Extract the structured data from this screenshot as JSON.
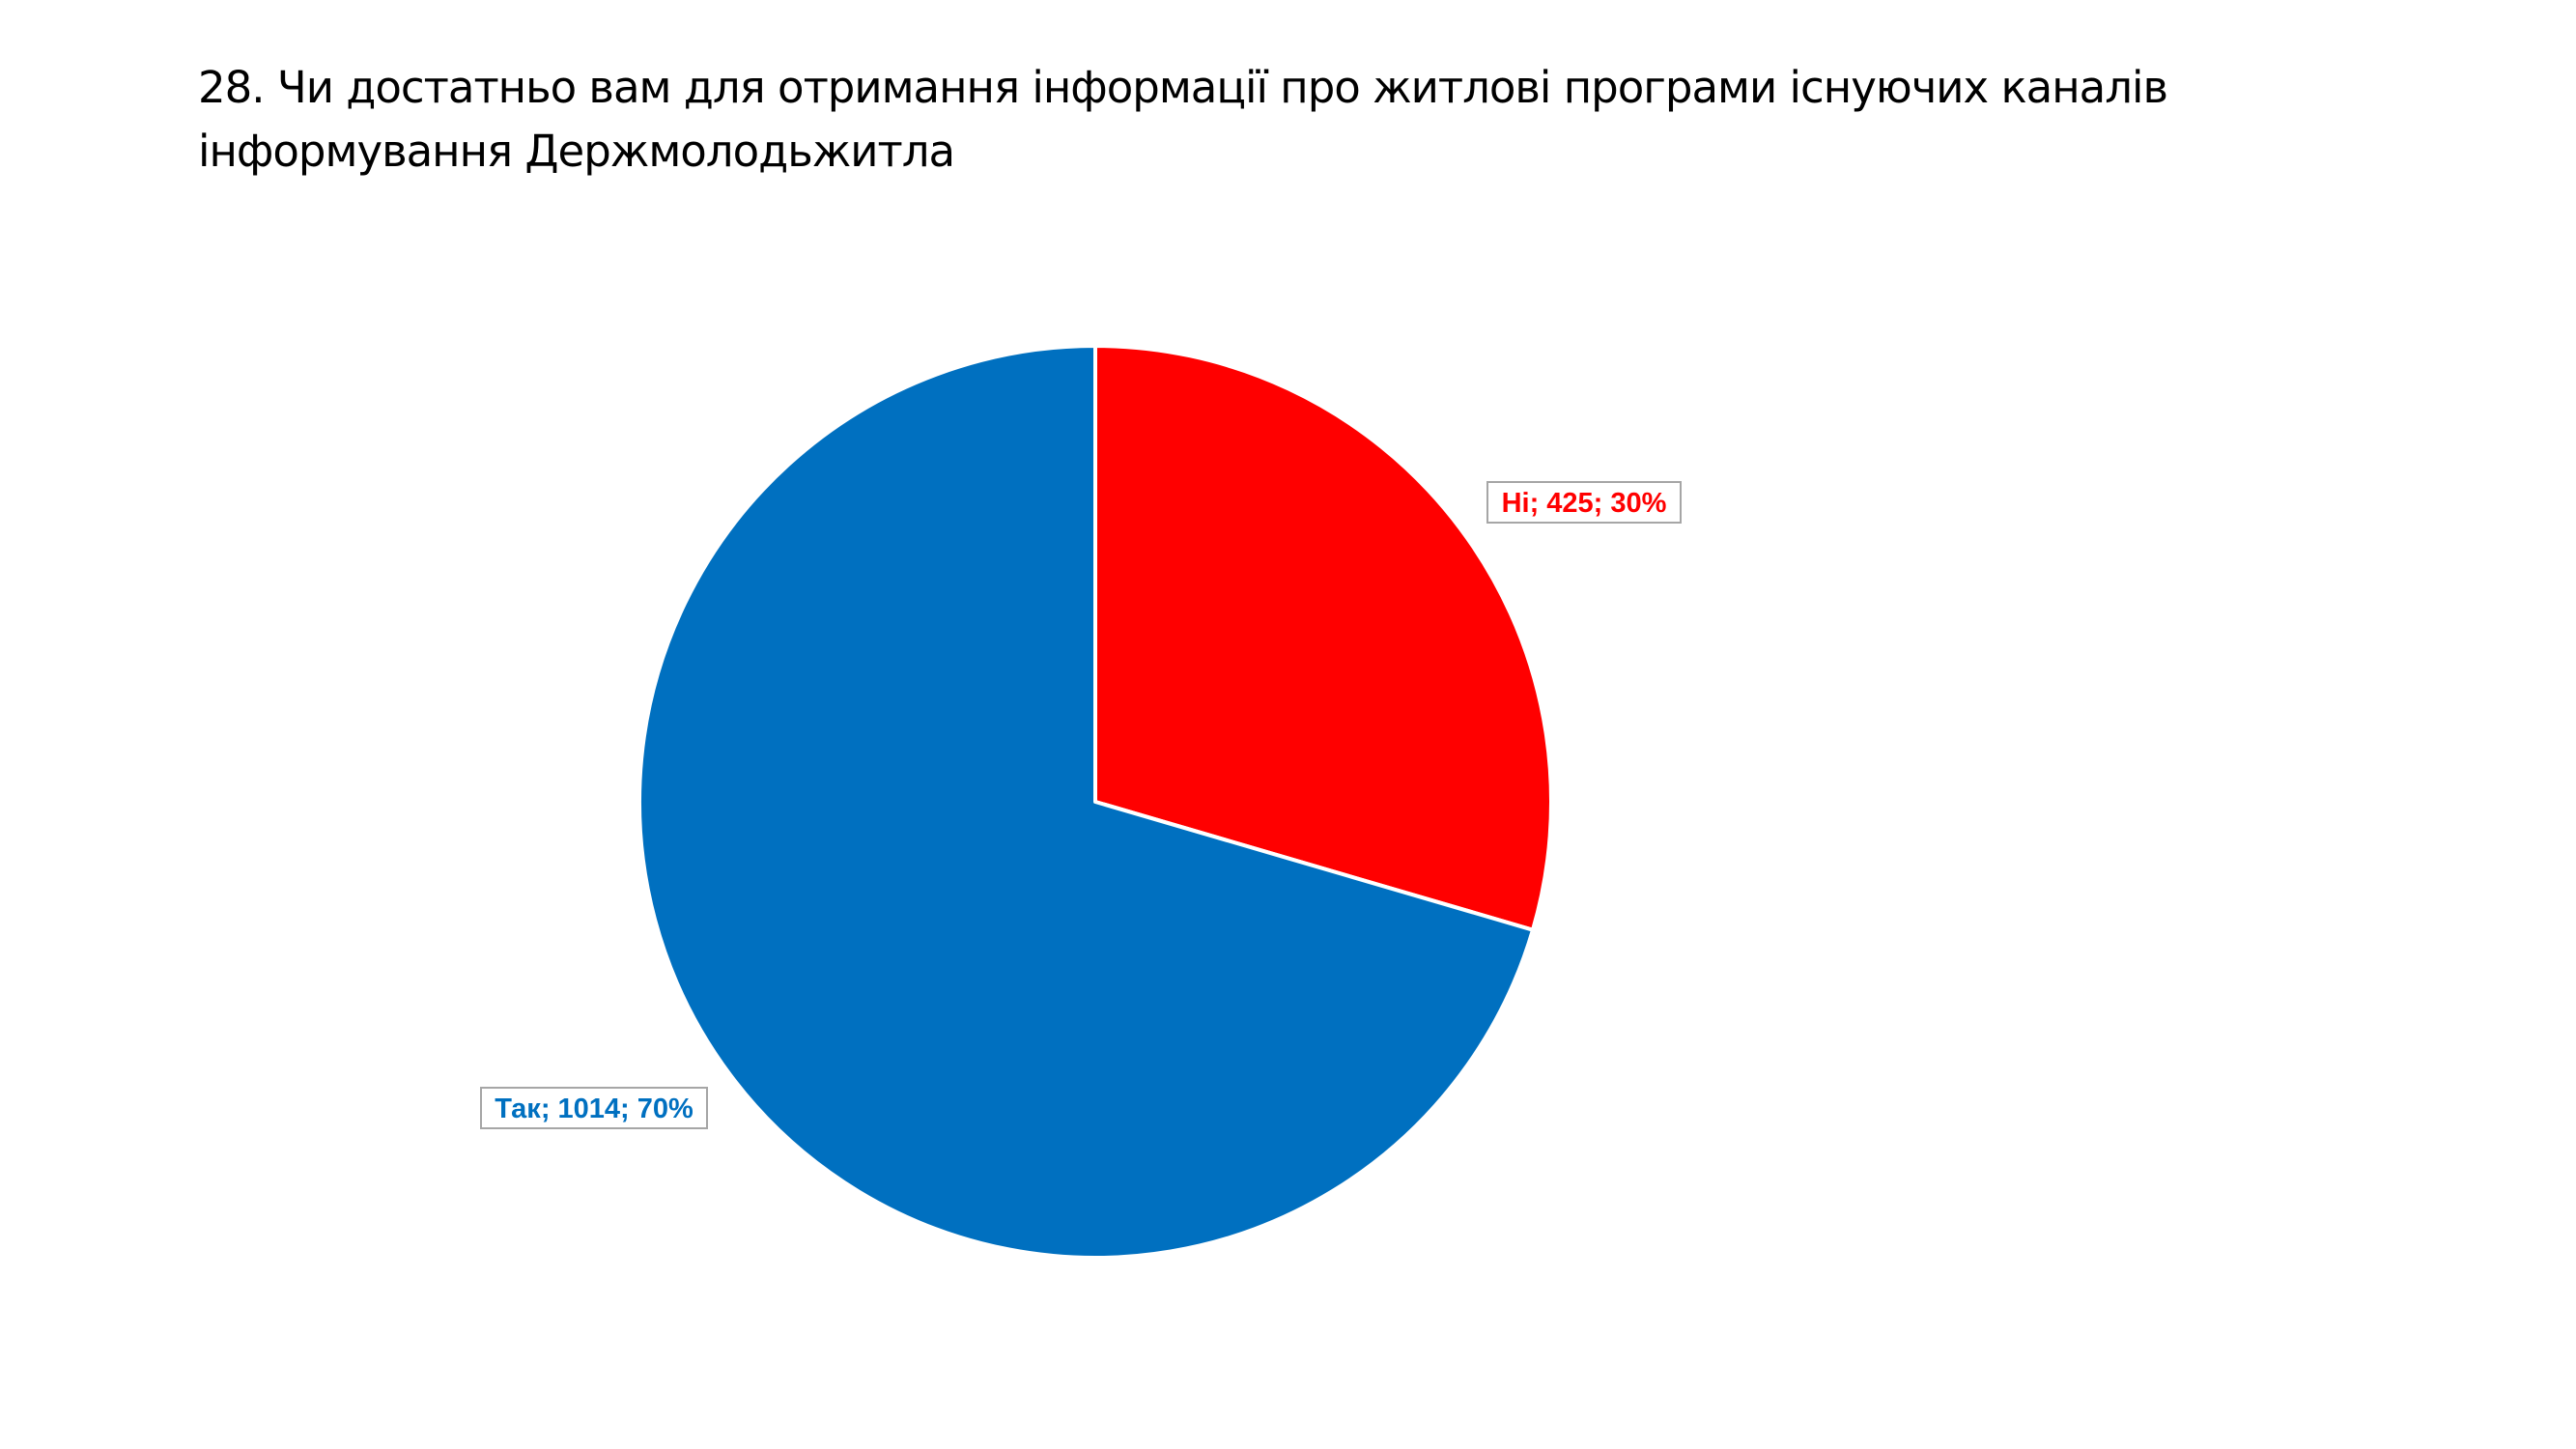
{
  "title": "28. Чи достатньо вам для отримання інформації про житлові програми існуючих каналів інформування Держмолодьжитла",
  "chart_data": {
    "type": "pie",
    "title": "28. Чи достатньо вам для отримання інформації про житлові програми існуючих каналів інформування Держмолодьжитла",
    "slices": [
      {
        "label": "Ні",
        "value": 425,
        "percent": 30,
        "color": "#ff0000",
        "text": "Ні; 425; 30%"
      },
      {
        "label": "Так",
        "value": 1014,
        "percent": 70,
        "color": "#0070c0",
        "text": "Так; 1014; 70%"
      }
    ],
    "start": "12 o'clock",
    "direction": "clockwise",
    "legend": "none",
    "data_labels": "outside, boxed"
  }
}
